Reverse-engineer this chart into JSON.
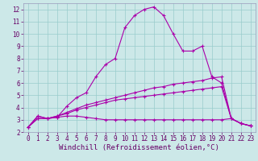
{
  "xlabel": "Windchill (Refroidissement éolien,°C)",
  "background_color": "#cce8e8",
  "line_color": "#aa00aa",
  "grid_color": "#99cccc",
  "spine_color": "#9999bb",
  "x_values": [
    0,
    1,
    2,
    3,
    4,
    5,
    6,
    7,
    8,
    9,
    10,
    11,
    12,
    13,
    14,
    15,
    16,
    17,
    18,
    19,
    20,
    21,
    22,
    23
  ],
  "series1": [
    2.4,
    3.3,
    3.1,
    3.2,
    4.1,
    4.8,
    5.2,
    6.5,
    7.5,
    8.0,
    10.5,
    11.5,
    12.0,
    12.2,
    11.5,
    10.0,
    8.6,
    8.6,
    9.0,
    6.5,
    6.0,
    3.1,
    2.7,
    2.5
  ],
  "series2": [
    2.4,
    3.3,
    3.1,
    3.2,
    3.3,
    3.3,
    3.2,
    3.1,
    3.0,
    3.0,
    3.0,
    3.0,
    3.0,
    3.0,
    3.0,
    3.0,
    3.0,
    3.0,
    3.0,
    3.0,
    3.0,
    3.1,
    2.7,
    2.5
  ],
  "series3": [
    2.4,
    3.1,
    3.1,
    3.3,
    3.5,
    3.8,
    4.0,
    4.2,
    4.4,
    4.6,
    4.7,
    4.8,
    4.9,
    5.0,
    5.1,
    5.2,
    5.3,
    5.4,
    5.5,
    5.6,
    5.7,
    3.1,
    2.7,
    2.5
  ],
  "series4": [
    2.4,
    3.1,
    3.1,
    3.3,
    3.6,
    3.9,
    4.2,
    4.4,
    4.6,
    4.8,
    5.0,
    5.2,
    5.4,
    5.6,
    5.7,
    5.9,
    6.0,
    6.1,
    6.2,
    6.4,
    6.5,
    3.1,
    2.7,
    2.5
  ],
  "ylim": [
    2,
    12.5
  ],
  "xlim": [
    -0.5,
    23.5
  ],
  "yticks": [
    2,
    3,
    4,
    5,
    6,
    7,
    8,
    9,
    10,
    11,
    12
  ],
  "xticks": [
    0,
    1,
    2,
    3,
    4,
    5,
    6,
    7,
    8,
    9,
    10,
    11,
    12,
    13,
    14,
    15,
    16,
    17,
    18,
    19,
    20,
    21,
    22,
    23
  ],
  "marker": "+",
  "marker_size": 3,
  "line_width": 0.8,
  "tick_fontsize": 5.5,
  "label_fontsize": 6.5
}
